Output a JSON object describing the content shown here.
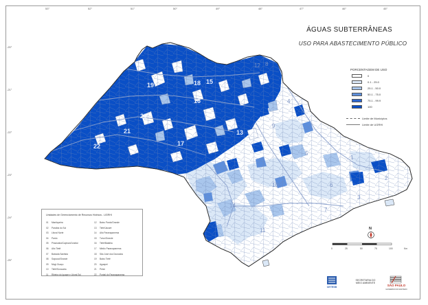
{
  "map": {
    "title": "ÁGUAS SUBTERRÂNEAS",
    "subtitle": "USO PARA ABASTECIMENTO PÚBLICO"
  },
  "coordinates": {
    "top": [
      "53°",
      "52°",
      "51°",
      "50°",
      "49°",
      "48°",
      "47°",
      "46°",
      "45°",
      "44°"
    ],
    "left": [
      "-20°",
      "-21°",
      "-22°",
      "-23°",
      "-24°",
      "-25°"
    ]
  },
  "legend": {
    "title": "PORCENTAGEM DE USO",
    "classes": [
      {
        "label": "0",
        "color": "#ffffff"
      },
      {
        "label": "0.1  -  25.0",
        "color": "#dbe8f7"
      },
      {
        "label": "25.1  -  50.0",
        "color": "#a9c6ec"
      },
      {
        "label": "50.1  -  75.0",
        "color": "#5e8fdc"
      },
      {
        "label": "75.1  -  99.9",
        "color": "#2c66cf"
      },
      {
        "label": "100",
        "color": "#0a4fc6"
      }
    ],
    "boundaries": [
      {
        "label": "Limite de Municípios",
        "style": "dash"
      },
      {
        "label": "Limite de UGRHI",
        "style": "solid"
      }
    ]
  },
  "ugrhi_numbers": [
    {
      "n": "19"
    },
    {
      "n": "16"
    },
    {
      "n": "20"
    },
    {
      "n": "21"
    },
    {
      "n": "22"
    },
    {
      "n": "15"
    },
    {
      "n": "18"
    },
    {
      "n": "17"
    },
    {
      "n": "13"
    },
    {
      "n": "9"
    },
    {
      "n": "8"
    },
    {
      "n": "4"
    },
    {
      "n": "12"
    },
    {
      "n": "5"
    },
    {
      "n": "10"
    },
    {
      "n": "14"
    },
    {
      "n": "11"
    },
    {
      "n": "6"
    },
    {
      "n": "7"
    },
    {
      "n": "2"
    },
    {
      "n": "1"
    },
    {
      "n": "3"
    }
  ],
  "ugrhi_list": {
    "title": "Unidades de Gerenciamento de Recursos Hídricos - UGRHI",
    "col1": [
      {
        "n": "01",
        "name": "Mantiqueira"
      },
      {
        "n": "02",
        "name": "Paraíba do Sul"
      },
      {
        "n": "03",
        "name": "Litoral Norte"
      },
      {
        "n": "04",
        "name": "Pardo"
      },
      {
        "n": "05",
        "name": "Piracicaba/Capivari/Jundiaí"
      },
      {
        "n": "06",
        "name": "Alto Tietê"
      },
      {
        "n": "07",
        "name": "Baixada Santista"
      },
      {
        "n": "08",
        "name": "Sapucaí/Grande"
      },
      {
        "n": "09",
        "name": "Mogi-Guaçu"
      },
      {
        "n": "10",
        "name": "Tietê/Sorocaba"
      },
      {
        "n": "11",
        "name": "Ribeira do Iguape e Litoral Sul"
      }
    ],
    "col2": [
      {
        "n": "12",
        "name": "Baixo Pardo/Grande"
      },
      {
        "n": "13",
        "name": "Tietê/Jacaré"
      },
      {
        "n": "14",
        "name": "Alto Paranapanema"
      },
      {
        "n": "15",
        "name": "Turvo/Grande"
      },
      {
        "n": "16",
        "name": "Tietê/Batalha"
      },
      {
        "n": "17",
        "name": "Médio Paranapanema"
      },
      {
        "n": "18",
        "name": "São José dos Dourados"
      },
      {
        "n": "19",
        "name": "Baixo Tietê"
      },
      {
        "n": "20",
        "name": "Aguapeí"
      },
      {
        "n": "21",
        "name": "Peixe"
      },
      {
        "n": "22",
        "name": "Pontal do Paranapanema"
      }
    ]
  },
  "north_label": "N",
  "scale": {
    "labels": [
      "0",
      "25",
      "50",
      "75",
      "100",
      "Km"
    ]
  },
  "logos": {
    "cetesb": "CETESB",
    "secretaria": "SECRETARIA DO MEIO AMBIENTE",
    "sao_paulo": "SÃO PAULO",
    "sp_sub": "GOVERNO DO ESTADO"
  }
}
